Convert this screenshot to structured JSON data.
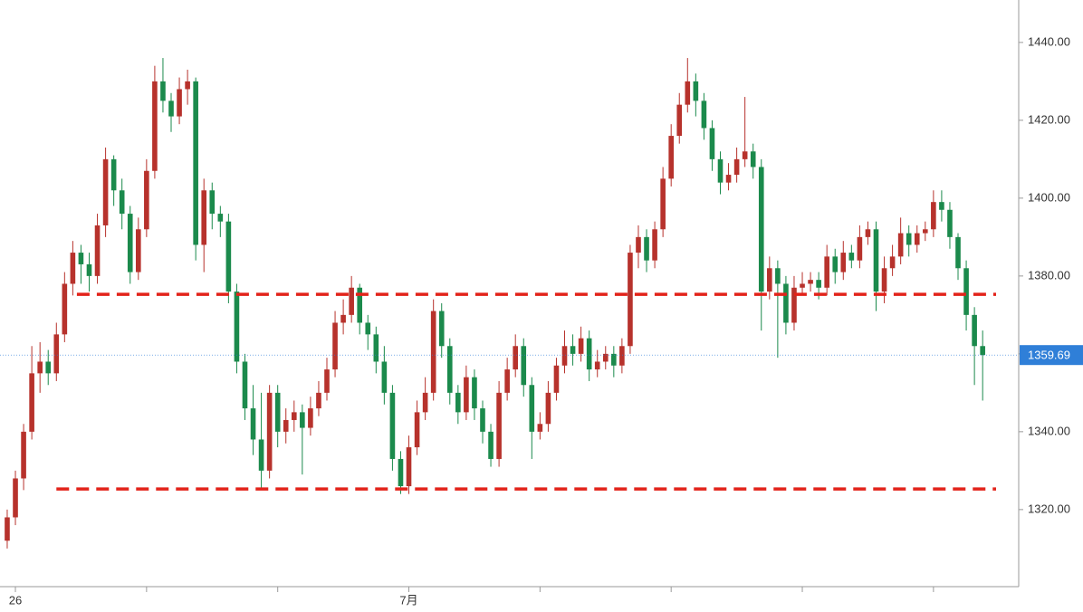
{
  "chart_data": {
    "type": "candlestick",
    "open": [
      1312,
      1318,
      1328,
      1340,
      1355,
      1358,
      1355,
      1365,
      1378,
      1386,
      1383,
      1380,
      1393,
      1410,
      1402,
      1396,
      1381,
      1392,
      1407,
      1430,
      1425,
      1421,
      1428,
      1430,
      1388,
      1402,
      1396,
      1394,
      1376,
      1358,
      1346,
      1338,
      1330,
      1350,
      1340,
      1343,
      1345,
      1341,
      1346,
      1350,
      1356,
      1368,
      1370,
      1377,
      1368,
      1365,
      1358,
      1350,
      1333,
      1326,
      1336,
      1345,
      1350,
      1371,
      1362,
      1350,
      1345,
      1354,
      1346,
      1340,
      1333,
      1350,
      1356,
      1362,
      1352,
      1340,
      1342,
      1350,
      1357,
      1362,
      1360,
      1364,
      1356,
      1358,
      1360,
      1357,
      1362,
      1386,
      1390,
      1384,
      1392,
      1405,
      1416,
      1424,
      1430,
      1425,
      1418,
      1410,
      1404,
      1406,
      1410,
      1412,
      1408,
      1376,
      1382,
      1378,
      1368,
      1377,
      1378,
      1379,
      1377,
      1385,
      1381,
      1386,
      1384,
      1390,
      1392,
      1376,
      1382,
      1385,
      1391,
      1388,
      1391,
      1392,
      1399,
      1397,
      1390,
      1382,
      1370,
      1362
    ],
    "high": [
      1320,
      1330,
      1342,
      1362,
      1363,
      1361,
      1368,
      1381,
      1389,
      1388,
      1386,
      1396,
      1413,
      1411,
      1405,
      1398,
      1395,
      1410,
      1434,
      1436,
      1427,
      1431,
      1433,
      1431,
      1405,
      1404,
      1398,
      1396,
      1378,
      1360,
      1352,
      1350,
      1352,
      1352,
      1346,
      1348,
      1347,
      1349,
      1353,
      1359,
      1371,
      1374,
      1380,
      1378,
      1370,
      1367,
      1362,
      1352,
      1335,
      1339,
      1348,
      1354,
      1374,
      1373,
      1364,
      1352,
      1357,
      1356,
      1348,
      1342,
      1353,
      1359,
      1365,
      1364,
      1354,
      1345,
      1353,
      1359,
      1366,
      1365,
      1367,
      1366,
      1361,
      1362,
      1362,
      1364,
      1388,
      1393,
      1392,
      1394,
      1408,
      1419,
      1427,
      1436,
      1432,
      1427,
      1420,
      1412,
      1409,
      1413,
      1426,
      1414,
      1410,
      1385,
      1384,
      1380,
      1380,
      1381,
      1381,
      1381,
      1388,
      1387,
      1389,
      1388,
      1393,
      1394,
      1394,
      1385,
      1388,
      1395,
      1393,
      1393,
      1394,
      1402,
      1402,
      1399,
      1391,
      1384,
      1372,
      1366
    ],
    "low": [
      1310,
      1316,
      1325,
      1338,
      1350,
      1352,
      1353,
      1363,
      1375,
      1378,
      1376,
      1378,
      1390,
      1398,
      1392,
      1378,
      1379,
      1390,
      1405,
      1422,
      1417,
      1419,
      1424,
      1384,
      1381,
      1392,
      1390,
      1373,
      1355,
      1343,
      1334,
      1325,
      1328,
      1336,
      1337,
      1340,
      1329,
      1339,
      1344,
      1348,
      1354,
      1365,
      1368,
      1365,
      1361,
      1355,
      1347,
      1330,
      1324,
      1324,
      1334,
      1343,
      1348,
      1359,
      1347,
      1342,
      1343,
      1343,
      1337,
      1331,
      1331,
      1348,
      1354,
      1349,
      1333,
      1338,
      1340,
      1348,
      1355,
      1357,
      1358,
      1353,
      1354,
      1356,
      1354,
      1355,
      1360,
      1382,
      1381,
      1382,
      1390,
      1403,
      1414,
      1422,
      1421,
      1415,
      1407,
      1401,
      1402,
      1404,
      1408,
      1405,
      1366,
      1374,
      1359,
      1365,
      1366,
      1375,
      1376,
      1374,
      1375,
      1378,
      1379,
      1382,
      1382,
      1388,
      1371,
      1373,
      1380,
      1383,
      1385,
      1386,
      1389,
      1390,
      1394,
      1387,
      1379,
      1366,
      1352,
      1348
    ],
    "close": [
      1318,
      1328,
      1340,
      1355,
      1358,
      1355,
      1365,
      1378,
      1386,
      1383,
      1380,
      1393,
      1410,
      1402,
      1396,
      1381,
      1392,
      1407,
      1430,
      1425,
      1421,
      1428,
      1430,
      1388,
      1402,
      1396,
      1394,
      1376,
      1358,
      1346,
      1338,
      1330,
      1350,
      1340,
      1343,
      1345,
      1341,
      1346,
      1350,
      1356,
      1368,
      1370,
      1377,
      1368,
      1365,
      1358,
      1350,
      1333,
      1326,
      1336,
      1345,
      1350,
      1371,
      1362,
      1350,
      1345,
      1354,
      1346,
      1340,
      1333,
      1350,
      1356,
      1362,
      1352,
      1340,
      1342,
      1350,
      1357,
      1362,
      1360,
      1364,
      1356,
      1358,
      1360,
      1357,
      1362,
      1386,
      1390,
      1384,
      1392,
      1405,
      1416,
      1424,
      1430,
      1425,
      1418,
      1410,
      1404,
      1406,
      1410,
      1412,
      1408,
      1376,
      1382,
      1378,
      1368,
      1377,
      1378,
      1379,
      1377,
      1385,
      1381,
      1386,
      1384,
      1390,
      1392,
      1376,
      1382,
      1385,
      1391,
      1388,
      1391,
      1392,
      1399,
      1397,
      1390,
      1382,
      1370,
      1362,
      1359.69
    ],
    "up_color": "#b7322c",
    "down_color": "#1b8a4c",
    "xlim": [
      -0.88,
      123.4
    ],
    "ylim": [
      1300.2,
      1450.9
    ],
    "xticks": [
      {
        "value": 1,
        "label": "26"
      },
      {
        "value": 49,
        "label": "7月"
      }
    ],
    "minor_xticks": [
      17,
      33,
      65,
      81,
      97,
      113
    ],
    "yticks": [
      {
        "value": 1320,
        "label": "1320.00"
      },
      {
        "value": 1340,
        "label": "1340.00"
      },
      {
        "value": 1360,
        "label": "1360.00"
      },
      {
        "value": 1380,
        "label": "1380.00"
      },
      {
        "value": 1400,
        "label": "1400.00"
      },
      {
        "value": 1420,
        "label": "1420.00"
      },
      {
        "value": 1440,
        "label": "1440.00"
      }
    ],
    "hlines": [
      {
        "value": 1375.3,
        "x_from": 8.5,
        "color": "#e2231a"
      },
      {
        "value": 1325.3,
        "x_from": 6,
        "color": "#e2231a"
      }
    ],
    "price_label_color": "#2f7fd8"
  }
}
